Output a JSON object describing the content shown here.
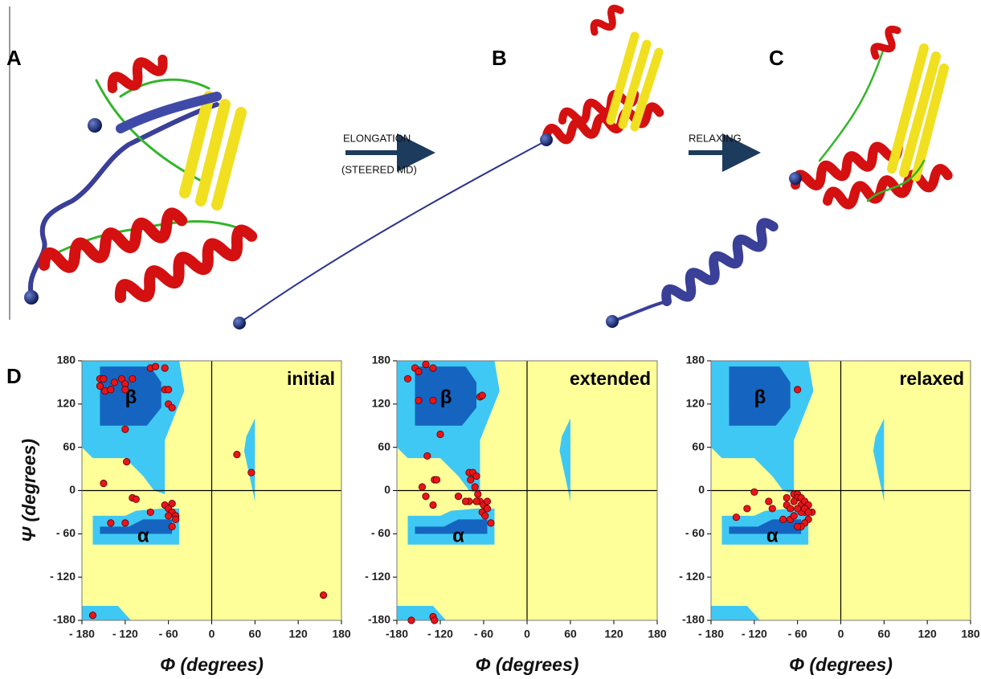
{
  "figure": {
    "panel_labels": [
      "A",
      "B",
      "C",
      "D"
    ],
    "steps": [
      "ELONGATION",
      "(STEERED MD)",
      "RELAXING"
    ]
  },
  "chart_data": [
    {
      "type": "scatter",
      "label": "initial",
      "region_labels": [
        "β",
        "α"
      ],
      "x_label": "Φ (degrees)",
      "y_label": "Ψ (degrees)",
      "color": "#e8141a",
      "x": [
        -155,
        -150,
        -155,
        -148,
        -140,
        -135,
        -125,
        -120,
        -110,
        -120,
        -85,
        -78,
        -65,
        -65,
        -60,
        -60,
        -55,
        -120,
        -118,
        -150,
        -110,
        -105,
        -140,
        -120,
        -85,
        -65,
        -55,
        -60,
        -55,
        -50,
        -60,
        -55,
        -50,
        35,
        55,
        155,
        -165
      ],
      "values": [
        155,
        155,
        145,
        138,
        140,
        150,
        155,
        148,
        155,
        140,
        170,
        172,
        170,
        140,
        140,
        120,
        115,
        85,
        40,
        10,
        -10,
        -12,
        -45,
        -45,
        -30,
        -20,
        -18,
        -25,
        -30,
        -35,
        -35,
        -50,
        -40,
        50,
        25,
        -145,
        -173
      ],
      "xlim": [
        -180,
        180
      ],
      "ylim": [
        -180,
        180
      ],
      "xticks": [
        {
          "value": -180,
          "label": "- 180"
        },
        {
          "value": -120,
          "label": "- 120"
        },
        {
          "value": -60,
          "label": "- 60"
        },
        0,
        60,
        120,
        180
      ],
      "yticks": [
        {
          "value": -180,
          "label": "-180"
        },
        {
          "value": -120,
          "label": "- 120"
        },
        {
          "value": -60,
          "label": "- 60"
        },
        0,
        60,
        120,
        180
      ]
    },
    {
      "type": "scatter",
      "label": "extended",
      "region_labels": [
        "β",
        "α"
      ],
      "x_label": "Φ (degrees)",
      "color": "#e8141a",
      "x": [
        -165,
        -155,
        -150,
        -140,
        -130,
        -150,
        -130,
        -65,
        -62,
        -120,
        -138,
        -145,
        -140,
        -130,
        -128,
        -125,
        -95,
        -80,
        -75,
        -70,
        -78,
        -72,
        -68,
        -65,
        -60,
        -55,
        -70,
        -80,
        -62,
        -58,
        -55,
        -50,
        -85,
        -160,
        -130,
        -128
      ],
      "values": [
        155,
        170,
        165,
        175,
        170,
        125,
        125,
        130,
        132,
        78,
        48,
        5,
        -8,
        -20,
        15,
        15,
        -8,
        25,
        25,
        20,
        15,
        5,
        -5,
        -15,
        -20,
        -15,
        -15,
        -15,
        -30,
        -35,
        -25,
        -45,
        -15,
        -180,
        -175,
        -180
      ],
      "xlim": [
        -180,
        180
      ],
      "ylim": [
        -180,
        180
      ],
      "xticks": [
        {
          "value": -180,
          "label": "-180"
        },
        {
          "value": -120,
          "label": "- 120"
        },
        {
          "value": -60,
          "label": "- 60"
        },
        0,
        60,
        120,
        180
      ],
      "yticks": [
        {
          "value": -180,
          "label": "-180"
        },
        {
          "value": -120,
          "label": "- 120"
        },
        {
          "value": -60,
          "label": "- 60"
        },
        0,
        60,
        120,
        180
      ]
    },
    {
      "type": "scatter",
      "label": "relaxed",
      "region_labels": [
        "β",
        "α"
      ],
      "x_label": "Φ (degrees)",
      "color": "#e8141a",
      "x": [
        -60,
        -120,
        -145,
        -130,
        -100,
        -95,
        -75,
        -80,
        -70,
        -65,
        -60,
        -60,
        -55,
        -65,
        -55,
        -50,
        -45,
        -40,
        -50,
        -55,
        -60,
        -45,
        -50,
        -55,
        -60,
        -65,
        -70,
        -75,
        -50,
        -45
      ],
      "values": [
        140,
        -2,
        -37,
        -25,
        -15,
        -25,
        -20,
        -40,
        -40,
        -5,
        -5,
        -10,
        -10,
        -15,
        -20,
        -15,
        -20,
        -30,
        -30,
        -30,
        -25,
        -40,
        -45,
        -50,
        -50,
        -35,
        -25,
        -10,
        -25,
        -30
      ],
      "xlim": [
        -180,
        180
      ],
      "ylim": [
        -180,
        180
      ],
      "xticks": [
        {
          "value": -180,
          "label": "- 180"
        },
        {
          "value": -120,
          "label": "- 120"
        },
        {
          "value": -60,
          "label": "- 60"
        },
        0,
        60,
        120,
        180
      ],
      "yticks": [
        {
          "value": -180,
          "label": "-180"
        },
        {
          "value": -120,
          "label": "- 120"
        },
        {
          "value": -60,
          "label": "- 60"
        },
        0,
        60,
        120,
        180
      ]
    }
  ]
}
